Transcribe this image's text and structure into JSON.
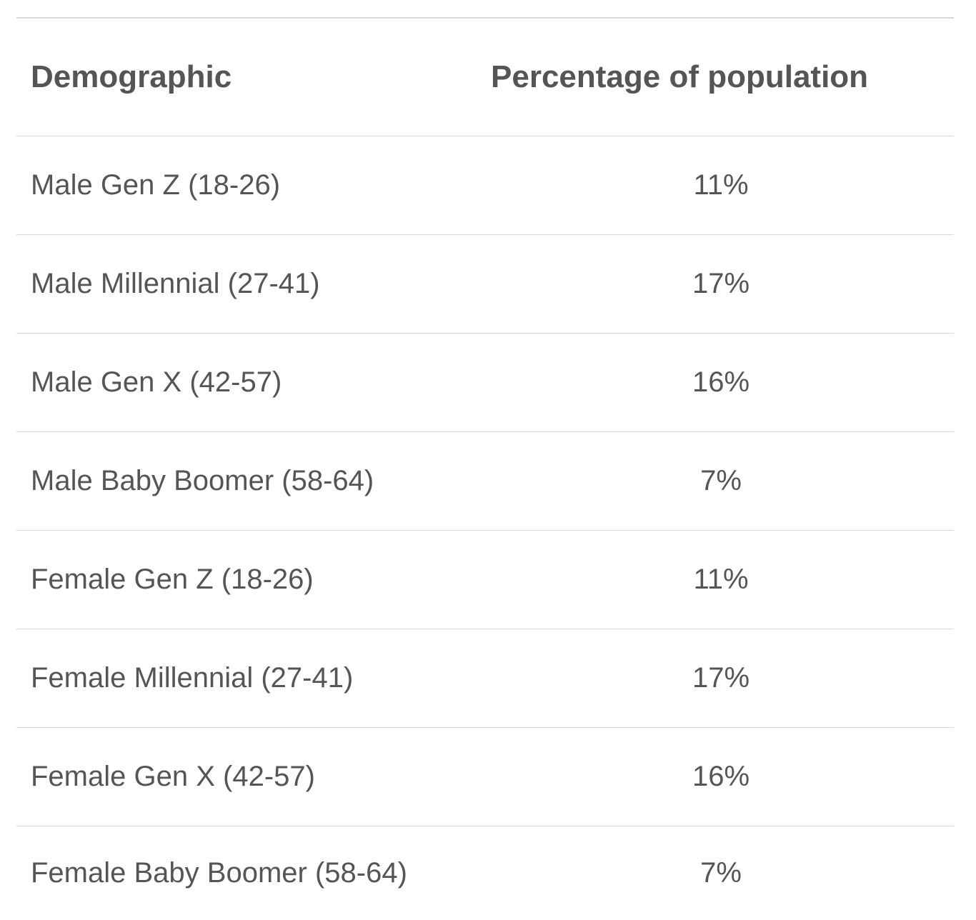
{
  "table": {
    "headers": {
      "demographic": "Demographic",
      "percentage": "Percentage of population"
    },
    "rows": [
      {
        "demographic": "Male Gen Z (18-26)",
        "percentage": "11%"
      },
      {
        "demographic": "Male Millennial (27-41)",
        "percentage": "17%"
      },
      {
        "demographic": "Male Gen X (42-57)",
        "percentage": "16%"
      },
      {
        "demographic": "Male Baby Boomer (58-64)",
        "percentage": "7%"
      },
      {
        "demographic": "Female Gen Z (18-26)",
        "percentage": "11%"
      },
      {
        "demographic": "Female Millennial (27-41)",
        "percentage": "17%"
      },
      {
        "demographic": "Female Gen X (42-57)",
        "percentage": "16%"
      },
      {
        "demographic": "Female Baby Boomer (58-64)",
        "percentage": "7%"
      }
    ]
  },
  "colors": {
    "text": "#555555",
    "border": "#d8d8d8",
    "background": "#ffffff"
  }
}
